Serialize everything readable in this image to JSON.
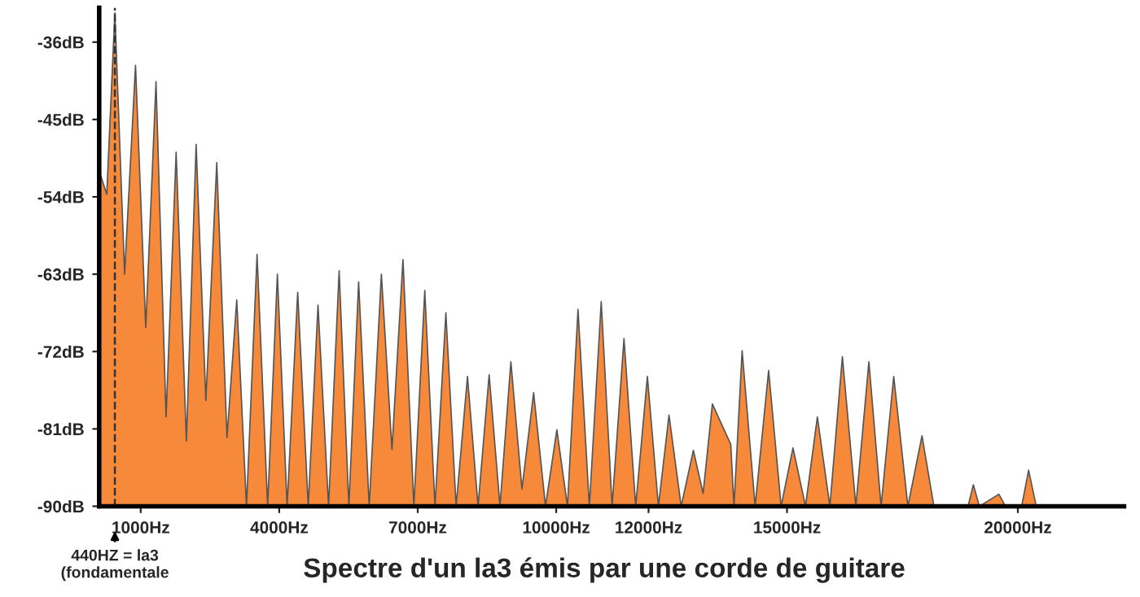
{
  "chart_data": {
    "type": "area",
    "title": "Spectre d'un la3 émis par une corde de guitare",
    "x": [
      100,
      101,
      264,
      440,
      651,
      887,
      1109,
      1331,
      1549,
      1767,
      1989,
      2200,
      2411,
      2647,
      2869,
      3080,
      3291,
      3520,
      3749,
      3960,
      4171,
      4400,
      4629,
      4840,
      5069,
      5298,
      5509,
      5720,
      5949,
      6213,
      6442,
      6681,
      6917,
      7153,
      7374,
      7610,
      7832,
      8078,
      8307,
      8547,
      8782,
      9018,
      9258,
      9511,
      9768,
      10014,
      10243,
      10472,
      10718,
      10975,
      11211,
      11468,
      11722,
      11975,
      12214,
      12443,
      12707,
      12971,
      13182,
      13383,
      13781,
      13851,
      14027,
      14309,
      14601,
      14872,
      15129,
      15400,
      15657,
      15928,
      16199,
      16491,
      16773,
      17037,
      17311,
      17618,
      17924,
      18181,
      18920,
      19036,
      19166,
      19589,
      19730,
      20082,
      20233,
      20398,
      22264
    ],
    "series": [
      {
        "color": "#f7893a",
        "values": [
          -90,
          -51,
          -53.7,
          -32.6,
          -63,
          -38.7,
          -69.2,
          -40.6,
          -79.6,
          -48.8,
          -82.4,
          -47.9,
          -77.7,
          -50,
          -82,
          -66,
          -90,
          -60.7,
          -90,
          -63,
          -90,
          -65.1,
          -90,
          -66.6,
          -90,
          -62.6,
          -90,
          -63.9,
          -90,
          -63,
          -83.4,
          -61.3,
          -90,
          -64.9,
          -90,
          -67.5,
          -90,
          -74.9,
          -90,
          -74.7,
          -90,
          -73.2,
          -88,
          -76.8,
          -90,
          -81.1,
          -90,
          -67.1,
          -90,
          -66.2,
          -90,
          -70.5,
          -90,
          -74.9,
          -90,
          -79.4,
          -90,
          -83.5,
          -88.5,
          -78.1,
          -82.8,
          -90,
          -71.9,
          -90,
          -74.2,
          -90,
          -83.2,
          -90,
          -79.6,
          -90,
          -72.6,
          -90,
          -73.2,
          -90,
          -74.9,
          -90,
          -81.8,
          -90,
          -90,
          -87.5,
          -90,
          -88.6,
          -90,
          -90,
          -85.8,
          -90,
          -90
        ]
      }
    ],
    "xlim": [
      100,
      22300
    ],
    "ylim": [
      -90,
      -32
    ],
    "xticks": [
      {
        "value": 1000,
        "label": "1000Hz"
      },
      {
        "value": 4000,
        "label": "4000Hz"
      },
      {
        "value": 7000,
        "label": "7000Hz"
      },
      {
        "value": 10000,
        "label": "10000Hz"
      },
      {
        "value": 12000,
        "label": "12000Hz"
      },
      {
        "value": 15000,
        "label": "15000Hz"
      },
      {
        "value": 20000,
        "label": "20000Hz"
      }
    ],
    "yticks": [
      {
        "value": -90,
        "label": "-90dB"
      },
      {
        "value": -81,
        "label": "-81dB"
      },
      {
        "value": -72,
        "label": "-72dB"
      },
      {
        "value": -63,
        "label": "-63dB"
      },
      {
        "value": -54,
        "label": "-54dB"
      },
      {
        "value": -45,
        "label": "-45dB"
      },
      {
        "value": -36,
        "label": "-36dB"
      }
    ],
    "ref_lines": [
      {
        "axis": "x",
        "value": 440,
        "label": "440HZ = la3\n(fondamentale",
        "line_style": "dashed",
        "color": "#333333"
      }
    ],
    "grid": false
  }
}
